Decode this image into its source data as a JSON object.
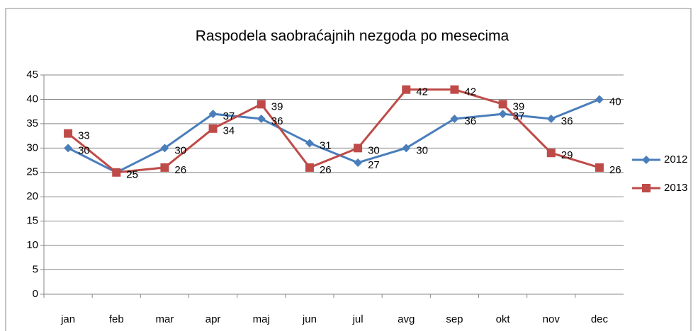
{
  "chart_data": {
    "type": "line",
    "title": "Raspodela saobraćajnih nezgoda po mesecima",
    "categories": [
      "jan",
      "feb",
      "mar",
      "apr",
      "maj",
      "jun",
      "jul",
      "avg",
      "sep",
      "okt",
      "nov",
      "dec"
    ],
    "series": [
      {
        "name": "2012",
        "color": "#4a7ebb",
        "marker": "diamond",
        "values": [
          30,
          25,
          30,
          37,
          36,
          31,
          27,
          30,
          36,
          37,
          36,
          40
        ]
      },
      {
        "name": "2013",
        "color": "#be4b48",
        "marker": "square",
        "values": [
          33,
          25,
          26,
          34,
          39,
          26,
          30,
          42,
          42,
          39,
          29,
          26
        ]
      }
    ],
    "ylim": [
      0,
      45
    ],
    "yticks": [
      0,
      5,
      10,
      15,
      20,
      25,
      30,
      35,
      40,
      45
    ],
    "grid": true,
    "legend": "right"
  }
}
